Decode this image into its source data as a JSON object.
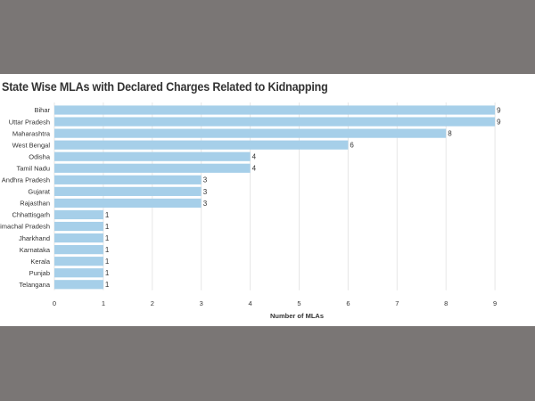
{
  "chart_data": {
    "type": "bar",
    "orientation": "horizontal",
    "title": "State Wise MLAs with Declared Charges Related to Kidnapping",
    "xlabel": "Number of MLAs",
    "ylabel": "",
    "categories": [
      "Bihar",
      "Uttar Pradesh",
      "Maharashtra",
      "West Bengal",
      "Odisha",
      "Tamil Nadu",
      "Andhra Pradesh",
      "Gujarat",
      "Rajasthan",
      "Chhattisgarh",
      "Himachal Pradesh",
      "Jharkhand",
      "Karnataka",
      "Kerala",
      "Punjab",
      "Telangana"
    ],
    "values": [
      9,
      9,
      8,
      6,
      4,
      4,
      3,
      3,
      3,
      1,
      1,
      1,
      1,
      1,
      1,
      1
    ],
    "xticks": [
      "0",
      "1",
      "2",
      "3",
      "4",
      "5",
      "6",
      "7",
      "8",
      "9"
    ],
    "xlim": [
      0,
      9.5
    ],
    "grid": "vertical",
    "legend": "none",
    "bar_color": "#a6cfe9",
    "data_labels": true
  },
  "colors": {
    "background_band": "#7a7675",
    "panel": "#ffffff",
    "grid": "#e6e6e6",
    "text": "#333333"
  }
}
